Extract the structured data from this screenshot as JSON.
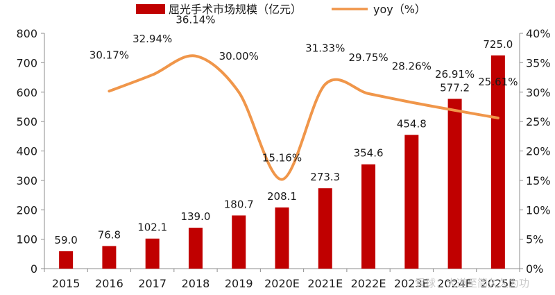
{
  "chart_data": {
    "type": "bar",
    "categories": [
      "2015",
      "2016",
      "2017",
      "2018",
      "2019",
      "2020E",
      "2021E",
      "2022E",
      "2023E",
      "2024E",
      "2025E"
    ],
    "series": [
      {
        "name": "屈光手术市场规模（亿元）",
        "type": "bar",
        "axis": "left",
        "color": "#c00000",
        "values": [
          59.0,
          76.8,
          102.1,
          139.0,
          180.7,
          208.1,
          273.3,
          354.6,
          454.8,
          577.2,
          725.0
        ],
        "labels": [
          "59.0",
          "76.8",
          "102.1",
          "139.0",
          "180.7",
          "208.1",
          "273.3",
          "354.6",
          "454.8",
          "577.2",
          "725.0"
        ]
      },
      {
        "name": "yoy（%）",
        "type": "line",
        "axis": "right",
        "color": "#f0964a",
        "values": [
          null,
          30.17,
          32.94,
          36.14,
          30.0,
          15.16,
          31.33,
          29.75,
          28.26,
          26.91,
          25.61
        ],
        "labels": [
          "",
          "30.17%",
          "32.94%",
          "36.14%",
          "30.00%",
          "15.16%",
          "31.33%",
          "29.75%",
          "28.26%",
          "26.91%",
          "25.61%"
        ]
      }
    ],
    "y_left": {
      "min": 0,
      "max": 800,
      "step": 100
    },
    "y_right": {
      "min": 0,
      "max": 40,
      "step": 5
    },
    "y_right_tick_labels": [
      "0%",
      "5%",
      "10%",
      "15%",
      "20%",
      "25%",
      "30%",
      "35%",
      "40%"
    ],
    "legend_position": "top-center",
    "grid": false
  },
  "watermark": "雪球：大道至简久久为功"
}
